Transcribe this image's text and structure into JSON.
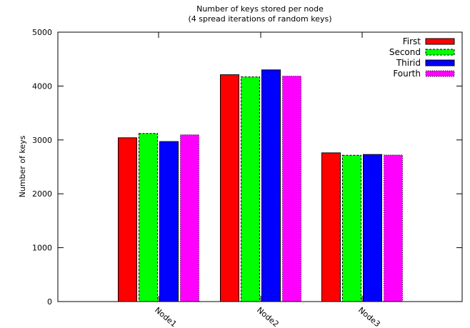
{
  "chart_data": {
    "type": "bar",
    "title": "Number of keys stored per node",
    "subtitle": "(4 spread iterations of random keys)",
    "xlabel": "",
    "ylabel": "Number of keys",
    "ylim": [
      0,
      5000
    ],
    "yticks": [
      "0",
      "1000",
      "2000",
      "3000",
      "4000",
      "5000"
    ],
    "categories": [
      "Node1",
      "Node2",
      "Node3"
    ],
    "series": [
      {
        "name": "First",
        "color": "#ff0000",
        "values": [
          3040,
          4210,
          2760
        ]
      },
      {
        "name": "Second",
        "color": "#00ff00",
        "values": [
          3120,
          4170,
          2715
        ],
        "dashed_outline": true
      },
      {
        "name": "Thirid",
        "color": "#0000ff",
        "values": [
          2970,
          4300,
          2730
        ]
      },
      {
        "name": "Fourth",
        "color": "#ff00ff",
        "values": [
          3095,
          4185,
          2720
        ],
        "dotted_outline": true
      }
    ],
    "grid": false,
    "legend_position": "top-right"
  }
}
